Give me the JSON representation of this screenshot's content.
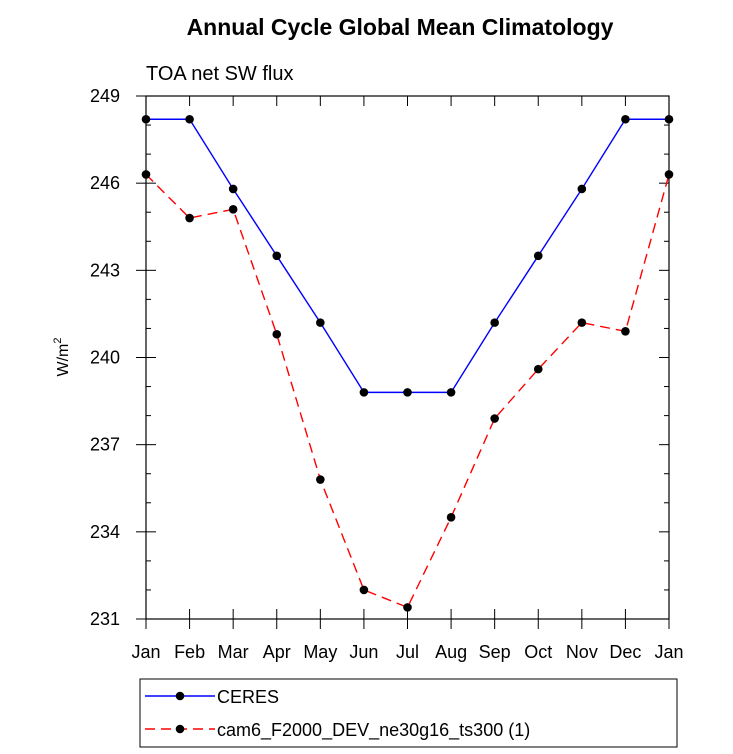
{
  "chart_data": {
    "type": "line",
    "title": "Annual Cycle Global Mean Climatology",
    "subtitle": "TOA net SW flux",
    "ylabel": "W/m",
    "ylabel_sup": "2",
    "ylim": [
      231,
      249
    ],
    "yticks": [
      231,
      234,
      237,
      240,
      243,
      246,
      249
    ],
    "categories": [
      "Jan",
      "Feb",
      "Mar",
      "Apr",
      "May",
      "Jun",
      "Jul",
      "Aug",
      "Sep",
      "Oct",
      "Nov",
      "Dec",
      "Jan"
    ],
    "grid": false,
    "legend_placement": "bottom",
    "series": [
      {
        "name": "CERES",
        "color": "#0000ff",
        "dash": "solid",
        "values": [
          248.2,
          248.2,
          245.8,
          243.5,
          241.2,
          238.8,
          238.8,
          238.8,
          241.2,
          243.5,
          245.8,
          248.2,
          248.2
        ]
      },
      {
        "name": "cam6_F2000_DEV_ne30g16_ts300 (1)",
        "color": "#ff0000",
        "dash": "dashed",
        "values": [
          246.3,
          244.8,
          245.1,
          240.8,
          235.8,
          232.0,
          231.4,
          234.5,
          237.9,
          239.6,
          241.2,
          240.9,
          246.3
        ]
      }
    ]
  }
}
